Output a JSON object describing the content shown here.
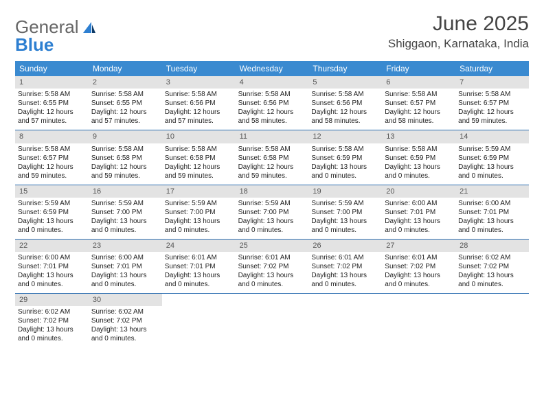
{
  "logo": {
    "general": "General",
    "blue": "Blue"
  },
  "title": "June 2025",
  "location": "Shiggaon, Karnataka, India",
  "colors": {
    "header_bg": "#3a8ad0",
    "header_fg": "#ffffff",
    "daynum_bg": "#e3e3e3",
    "week_border": "#2a6db0",
    "logo_blue": "#2d7fd1"
  },
  "dow": [
    "Sunday",
    "Monday",
    "Tuesday",
    "Wednesday",
    "Thursday",
    "Friday",
    "Saturday"
  ],
  "days": [
    {
      "n": "1",
      "sr": "5:58 AM",
      "ss": "6:55 PM",
      "dl": "12 hours and 57 minutes."
    },
    {
      "n": "2",
      "sr": "5:58 AM",
      "ss": "6:55 PM",
      "dl": "12 hours and 57 minutes."
    },
    {
      "n": "3",
      "sr": "5:58 AM",
      "ss": "6:56 PM",
      "dl": "12 hours and 57 minutes."
    },
    {
      "n": "4",
      "sr": "5:58 AM",
      "ss": "6:56 PM",
      "dl": "12 hours and 58 minutes."
    },
    {
      "n": "5",
      "sr": "5:58 AM",
      "ss": "6:56 PM",
      "dl": "12 hours and 58 minutes."
    },
    {
      "n": "6",
      "sr": "5:58 AM",
      "ss": "6:57 PM",
      "dl": "12 hours and 58 minutes."
    },
    {
      "n": "7",
      "sr": "5:58 AM",
      "ss": "6:57 PM",
      "dl": "12 hours and 59 minutes."
    },
    {
      "n": "8",
      "sr": "5:58 AM",
      "ss": "6:57 PM",
      "dl": "12 hours and 59 minutes."
    },
    {
      "n": "9",
      "sr": "5:58 AM",
      "ss": "6:58 PM",
      "dl": "12 hours and 59 minutes."
    },
    {
      "n": "10",
      "sr": "5:58 AM",
      "ss": "6:58 PM",
      "dl": "12 hours and 59 minutes."
    },
    {
      "n": "11",
      "sr": "5:58 AM",
      "ss": "6:58 PM",
      "dl": "12 hours and 59 minutes."
    },
    {
      "n": "12",
      "sr": "5:58 AM",
      "ss": "6:59 PM",
      "dl": "13 hours and 0 minutes."
    },
    {
      "n": "13",
      "sr": "5:58 AM",
      "ss": "6:59 PM",
      "dl": "13 hours and 0 minutes."
    },
    {
      "n": "14",
      "sr": "5:59 AM",
      "ss": "6:59 PM",
      "dl": "13 hours and 0 minutes."
    },
    {
      "n": "15",
      "sr": "5:59 AM",
      "ss": "6:59 PM",
      "dl": "13 hours and 0 minutes."
    },
    {
      "n": "16",
      "sr": "5:59 AM",
      "ss": "7:00 PM",
      "dl": "13 hours and 0 minutes."
    },
    {
      "n": "17",
      "sr": "5:59 AM",
      "ss": "7:00 PM",
      "dl": "13 hours and 0 minutes."
    },
    {
      "n": "18",
      "sr": "5:59 AM",
      "ss": "7:00 PM",
      "dl": "13 hours and 0 minutes."
    },
    {
      "n": "19",
      "sr": "5:59 AM",
      "ss": "7:00 PM",
      "dl": "13 hours and 0 minutes."
    },
    {
      "n": "20",
      "sr": "6:00 AM",
      "ss": "7:01 PM",
      "dl": "13 hours and 0 minutes."
    },
    {
      "n": "21",
      "sr": "6:00 AM",
      "ss": "7:01 PM",
      "dl": "13 hours and 0 minutes."
    },
    {
      "n": "22",
      "sr": "6:00 AM",
      "ss": "7:01 PM",
      "dl": "13 hours and 0 minutes."
    },
    {
      "n": "23",
      "sr": "6:00 AM",
      "ss": "7:01 PM",
      "dl": "13 hours and 0 minutes."
    },
    {
      "n": "24",
      "sr": "6:01 AM",
      "ss": "7:01 PM",
      "dl": "13 hours and 0 minutes."
    },
    {
      "n": "25",
      "sr": "6:01 AM",
      "ss": "7:02 PM",
      "dl": "13 hours and 0 minutes."
    },
    {
      "n": "26",
      "sr": "6:01 AM",
      "ss": "7:02 PM",
      "dl": "13 hours and 0 minutes."
    },
    {
      "n": "27",
      "sr": "6:01 AM",
      "ss": "7:02 PM",
      "dl": "13 hours and 0 minutes."
    },
    {
      "n": "28",
      "sr": "6:02 AM",
      "ss": "7:02 PM",
      "dl": "13 hours and 0 minutes."
    },
    {
      "n": "29",
      "sr": "6:02 AM",
      "ss": "7:02 PM",
      "dl": "13 hours and 0 minutes."
    },
    {
      "n": "30",
      "sr": "6:02 AM",
      "ss": "7:02 PM",
      "dl": "13 hours and 0 minutes."
    }
  ],
  "labels": {
    "sunrise": "Sunrise:",
    "sunset": "Sunset:",
    "daylight": "Daylight:"
  }
}
